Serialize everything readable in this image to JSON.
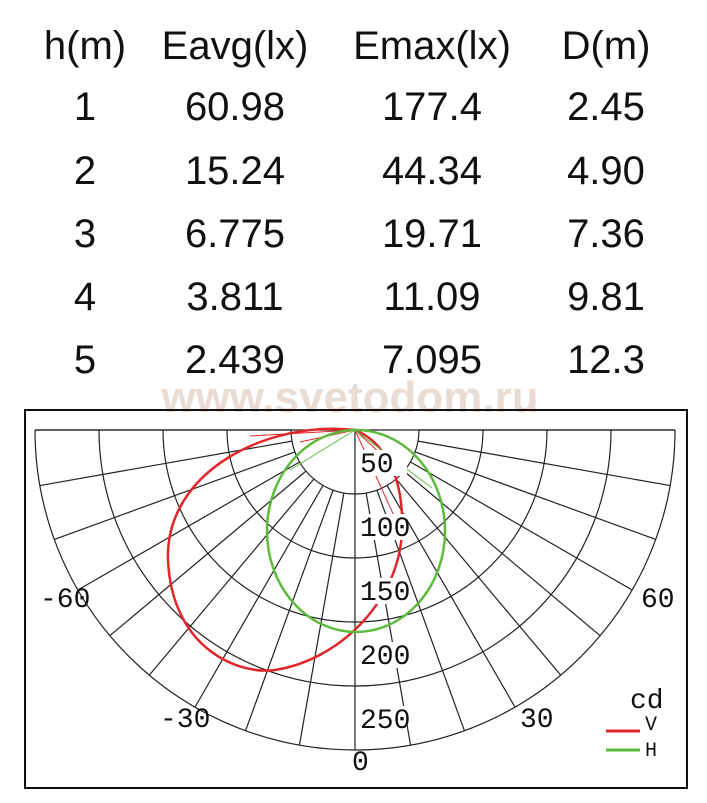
{
  "table": {
    "header": [
      "h(m)",
      "Eavg(lx)",
      "Emax(lx)",
      "D(m)"
    ],
    "rows": [
      [
        "1",
        "60.98",
        "177.4",
        "2.45"
      ],
      [
        "2",
        "15.24",
        "44.34",
        "4.90"
      ],
      [
        "3",
        "6.775",
        "19.71",
        "7.36"
      ],
      [
        "4",
        "3.811",
        "11.09",
        "9.81"
      ],
      [
        "5",
        "2.439",
        "7.095",
        "12.3"
      ]
    ]
  },
  "watermark": "www.svetodom.ru",
  "diagram": {
    "ring_labels": [
      "50",
      "100",
      "150",
      "200",
      "250"
    ],
    "angle_labels": [
      "-60",
      "60",
      "-30",
      "30",
      "0"
    ],
    "unit": "cd",
    "legend": [
      "V",
      "H"
    ]
  }
}
